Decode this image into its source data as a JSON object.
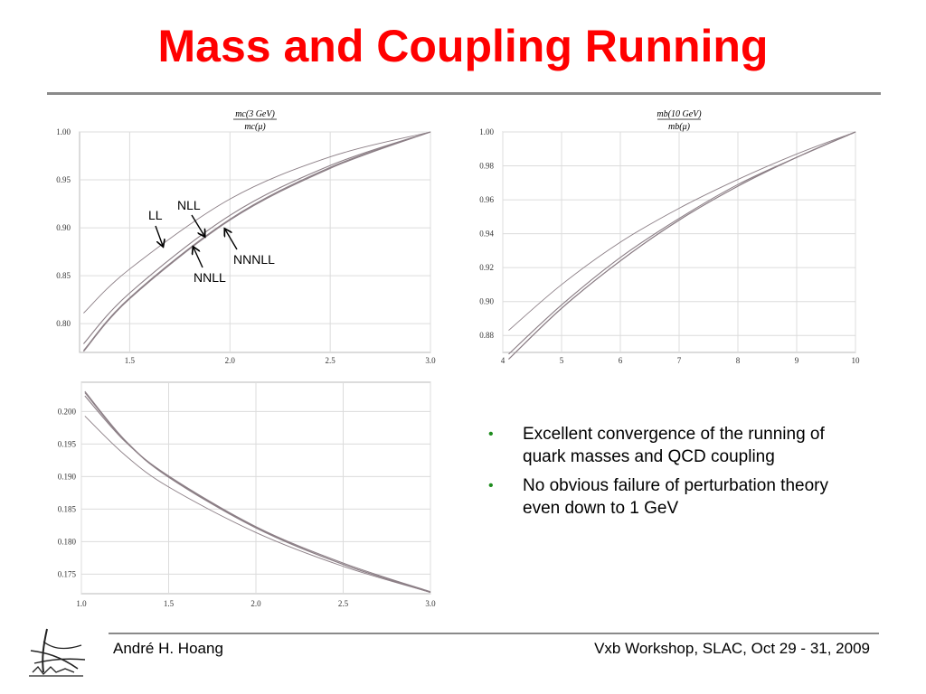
{
  "slide": {
    "title": "Mass and Coupling Running",
    "bullets": [
      "Excellent convergence of the running of quark masses and QCD coupling",
      "No obvious failure of perturbation theory even down to 1 GeV"
    ],
    "footer_left": "André H. Hoang",
    "footer_right": "Vxb Workshop, SLAC, Oct 29 - 31, 2009",
    "colors": {
      "title": "#ff0000",
      "bullet": "#1e8c1e",
      "curve": "#8c7f86",
      "rule": "#8a8a8a"
    }
  },
  "chart_data": [
    {
      "type": "line",
      "ylabel_numerator": "mc(3 GeV)",
      "ylabel_denominator": "mc(μ)",
      "xlim": [
        1.25,
        3.0
      ],
      "ylim": [
        0.77,
        1.0
      ],
      "xticks": [
        "1.5",
        "2.0",
        "2.5",
        "3.0"
      ],
      "yticks": [
        "0.80",
        "0.85",
        "0.90",
        "0.95",
        "1.00"
      ],
      "grid": true,
      "annotations": [
        "LL",
        "NLL",
        "NNLL",
        "NNNLL"
      ],
      "series": [
        {
          "name": "LL",
          "x": [
            1.27,
            1.5,
            2.0,
            2.5,
            3.0
          ],
          "y": [
            0.811,
            0.857,
            0.93,
            0.974,
            1.0
          ]
        },
        {
          "name": "NLL",
          "x": [
            1.27,
            1.5,
            2.0,
            2.5,
            3.0
          ],
          "y": [
            0.779,
            0.832,
            0.913,
            0.965,
            1.0
          ]
        },
        {
          "name": "NNLL",
          "x": [
            1.27,
            1.5,
            2.0,
            2.5,
            3.0
          ],
          "y": [
            0.772,
            0.827,
            0.909,
            0.963,
            1.0
          ]
        },
        {
          "name": "NNNLL",
          "x": [
            1.27,
            1.5,
            2.0,
            2.5,
            3.0
          ],
          "y": [
            0.771,
            0.826,
            0.908,
            0.962,
            1.0
          ]
        }
      ]
    },
    {
      "type": "line",
      "ylabel_numerator": "mb(10 GeV)",
      "ylabel_denominator": "mb(μ)",
      "xlim": [
        4,
        10
      ],
      "ylim": [
        0.87,
        1.0
      ],
      "xticks": [
        "4",
        "5",
        "6",
        "7",
        "8",
        "9",
        "10"
      ],
      "yticks": [
        "0.88",
        "0.90",
        "0.92",
        "0.94",
        "0.96",
        "0.98",
        "1.00"
      ],
      "grid": true,
      "series": [
        {
          "x": [
            4.1,
            5,
            6,
            7,
            8,
            9,
            10
          ],
          "y": [
            0.883,
            0.91,
            0.935,
            0.955,
            0.972,
            0.987,
            1.0
          ]
        },
        {
          "x": [
            4.1,
            5,
            6,
            7,
            8,
            9,
            10
          ],
          "y": [
            0.869,
            0.898,
            0.926,
            0.949,
            0.969,
            0.985,
            1.0
          ]
        },
        {
          "x": [
            4.1,
            5,
            6,
            7,
            8,
            9,
            10
          ],
          "y": [
            0.866,
            0.896,
            0.924,
            0.948,
            0.968,
            0.985,
            1.0
          ]
        },
        {
          "x": [
            4.1,
            5,
            6,
            7,
            8,
            9,
            10
          ],
          "y": [
            0.866,
            0.896,
            0.924,
            0.948,
            0.968,
            0.985,
            1.0
          ]
        }
      ]
    },
    {
      "type": "line",
      "xlim": [
        1.0,
        3.0
      ],
      "ylim": [
        0.172,
        0.2045
      ],
      "xticks": [
        "1.0",
        "1.5",
        "2.0",
        "2.5",
        "3.0"
      ],
      "yticks": [
        "0.175",
        "0.180",
        "0.185",
        "0.190",
        "0.195",
        "0.200"
      ],
      "grid": true,
      "series": [
        {
          "x": [
            1.02,
            1.25,
            1.5,
            2.0,
            2.5,
            3.0
          ],
          "y": [
            0.1993,
            0.1933,
            0.1884,
            0.1814,
            0.1762,
            0.1722
          ]
        },
        {
          "x": [
            1.02,
            1.25,
            1.5,
            2.0,
            2.5,
            3.0
          ],
          "y": [
            0.2029,
            0.1955,
            0.1899,
            0.1821,
            0.1765,
            0.1722
          ]
        },
        {
          "x": [
            1.02,
            1.25,
            1.5,
            2.0,
            2.5,
            3.0
          ],
          "y": [
            0.2031,
            0.1956,
            0.19,
            0.1822,
            0.1765,
            0.1722
          ]
        },
        {
          "x": [
            1.02,
            1.25,
            1.5,
            2.0,
            2.5,
            3.0
          ],
          "y": [
            0.2024,
            0.1954,
            0.1901,
            0.1823,
            0.1767,
            0.1723
          ]
        }
      ]
    }
  ]
}
